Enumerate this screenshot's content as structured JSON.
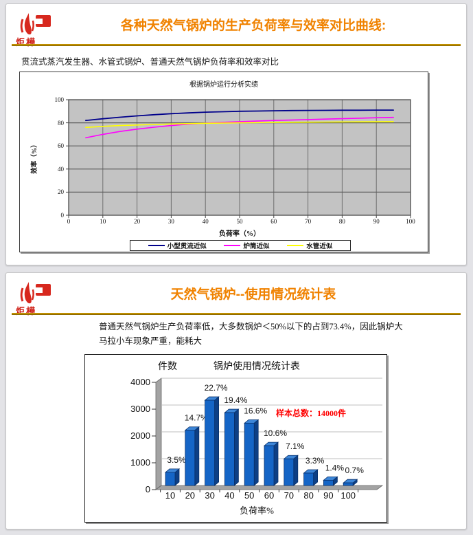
{
  "logo": {
    "text": "炬樺"
  },
  "slides": [
    {
      "title": "各种天然气锅炉的生产负荷率与效率对比曲线:",
      "subtitle": "贯流式蒸汽发生器、水管式锅炉、普通天然气锅炉负荷率和效率对比"
    },
    {
      "title": "天然气锅炉--使用情况统计表",
      "paragraph": "普通天然气锅炉生产负荷率低，大多数锅炉＜50%以下的占到73.4%，因此锅炉大马拉小车现象严重，能耗大"
    }
  ],
  "chart_data": [
    {
      "type": "line",
      "title": "根据锅炉运行分析实绩",
      "xlabel": "负荷率（%）",
      "ylabel": "效率（%）",
      "xlim": [
        0,
        100
      ],
      "ylim": [
        0,
        100
      ],
      "x_ticks": [
        0,
        10,
        20,
        30,
        40,
        50,
        60,
        70,
        80,
        90,
        100
      ],
      "y_ticks": [
        0,
        20,
        40,
        60,
        80,
        100
      ],
      "grid": true,
      "plot_bg": "#c3c3c3",
      "legend_position": "bottom",
      "x": [
        5,
        10,
        15,
        20,
        25,
        30,
        35,
        40,
        45,
        50,
        55,
        60,
        65,
        70,
        75,
        80,
        85,
        90,
        95
      ],
      "series": [
        {
          "name": "小型贯流近似",
          "color": "#00008b",
          "width": 1.8,
          "values": [
            82,
            83.5,
            84.8,
            86,
            87,
            87.9,
            88.6,
            89.2,
            89.6,
            90,
            90.2,
            90.4,
            90.6,
            90.7,
            90.8,
            90.9,
            90.9,
            91,
            91
          ]
        },
        {
          "name": "炉筒近似",
          "color": "#ff00ff",
          "width": 1.6,
          "values": [
            67,
            70,
            72.5,
            74.5,
            76.2,
            77.6,
            78.8,
            79.7,
            80.4,
            81,
            81.5,
            82,
            82.4,
            82.8,
            83.2,
            83.6,
            84,
            84.4,
            84.7
          ]
        },
        {
          "name": "水管近似",
          "color": "#ffff00",
          "width": 1.6,
          "values": [
            76,
            76.9,
            77.6,
            78.1,
            78.6,
            79,
            79.3,
            79.6,
            79.8,
            80,
            80.2,
            80.3,
            80.45,
            80.55,
            80.65,
            80.75,
            80.85,
            80.9,
            81
          ]
        }
      ]
    },
    {
      "type": "bar",
      "title": "锅炉使用情况统计表",
      "xlabel": "负荷率%",
      "ylabel": "件数",
      "categories": [
        "10",
        "20",
        "30",
        "40",
        "50",
        "60",
        "70",
        "80",
        "90",
        "100"
      ],
      "values": [
        490,
        2058,
        3178,
        2716,
        2324,
        1484,
        994,
        462,
        196,
        98
      ],
      "labels": [
        "3.5%",
        "14.7%",
        "22.7%",
        "19.4%",
        "16.6%",
        "10.6%",
        "7.1%",
        "3.3%",
        "1.4%",
        "0.7%"
      ],
      "ylim": [
        0,
        4000
      ],
      "y_ticks": [
        0,
        1000,
        2000,
        3000,
        4000
      ],
      "bar_color": "#1565c6",
      "bar_side_color": "#0d3f85",
      "bar_top_color": "#3d86d8",
      "bar_outline_color": "#08306b",
      "annotation": {
        "text": "样本总数：14000件",
        "color": "#ff0000"
      }
    }
  ]
}
